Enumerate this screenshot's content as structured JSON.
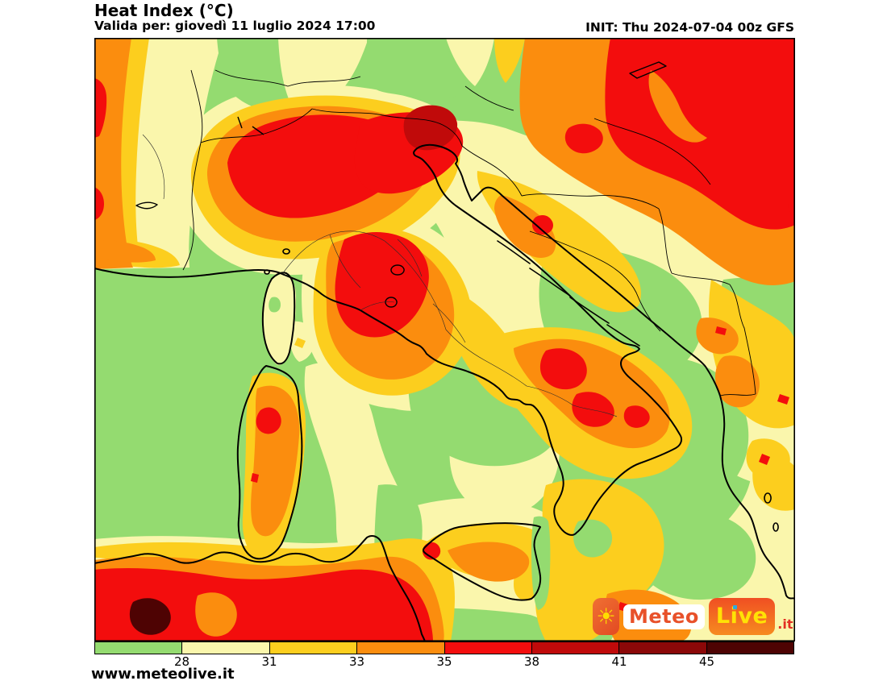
{
  "header": {
    "title": "Heat Index (°C)",
    "subtitle": "Valida per: giovedì 11 luglio 2024 17:00",
    "init": "INIT: Thu 2024-07-04 00z GFS"
  },
  "footer": {
    "website": "www.meteolive.it"
  },
  "logo": {
    "sun_icon": "sun-icon",
    "meteo": "Meteo",
    "live": "Live",
    "tld": ".it"
  },
  "palette": {
    "green": "#94DB70",
    "py": "#FAF6AC",
    "gold": "#FCCE1E",
    "orange": "#FB8D0E",
    "red": "#F30D0D",
    "dred": "#C00A0A",
    "dkred": "#8B0808",
    "maroon": "#4E0303"
  },
  "legend": {
    "unit": "°C",
    "ticks": [
      "28",
      "31",
      "33",
      "35",
      "38",
      "41",
      "45"
    ],
    "colors": [
      "#94DB70",
      "#FAF6AC",
      "#FCCE1E",
      "#FB8D0E",
      "#F30D0D",
      "#C00A0A",
      "#8B0808",
      "#4E0303"
    ]
  },
  "map_meta": {
    "region": "Italy and central Mediterranean",
    "variable": "Heat Index",
    "model": "GFS"
  }
}
